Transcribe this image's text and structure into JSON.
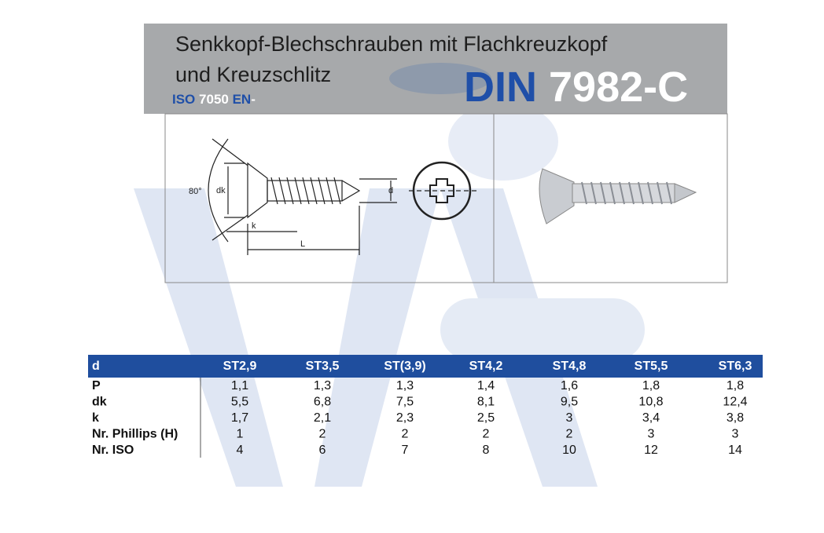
{
  "header": {
    "title_lines": [
      "Senkkopf-Blechschrauben mit Flachkreuzkopf",
      "und Kreuzschlitz"
    ],
    "iso": {
      "iso": "ISO",
      "number": "7050",
      "en": "EN",
      "dash": "-"
    },
    "din": {
      "prefix": "DIN",
      "number": "7982-C"
    }
  },
  "drawing": {
    "angle": "80°",
    "dk": "dk",
    "d": "d",
    "k": "k",
    "L": "L"
  },
  "table": {
    "header": [
      "d",
      "ST2,9",
      "ST3,5",
      "ST(3,9)",
      "ST4,2",
      "ST4,8",
      "ST5,5",
      "ST6,3"
    ],
    "rows": [
      [
        "P",
        "1,1",
        "1,3",
        "1,3",
        "1,4",
        "1,6",
        "1,8",
        "1,8"
      ],
      [
        "dk",
        "5,5",
        "6,8",
        "7,5",
        "8,1",
        "9,5",
        "10,8",
        "12,4"
      ],
      [
        "k",
        "1,7",
        "2,1",
        "2,3",
        "2,5",
        "3",
        "3,4",
        "3,8"
      ],
      [
        "Nr. Phillips (H)",
        "1",
        "2",
        "2",
        "2",
        "2",
        "3",
        "3"
      ],
      [
        "Nr. ISO",
        "4",
        "6",
        "7",
        "8",
        "10",
        "12",
        "14"
      ]
    ]
  }
}
